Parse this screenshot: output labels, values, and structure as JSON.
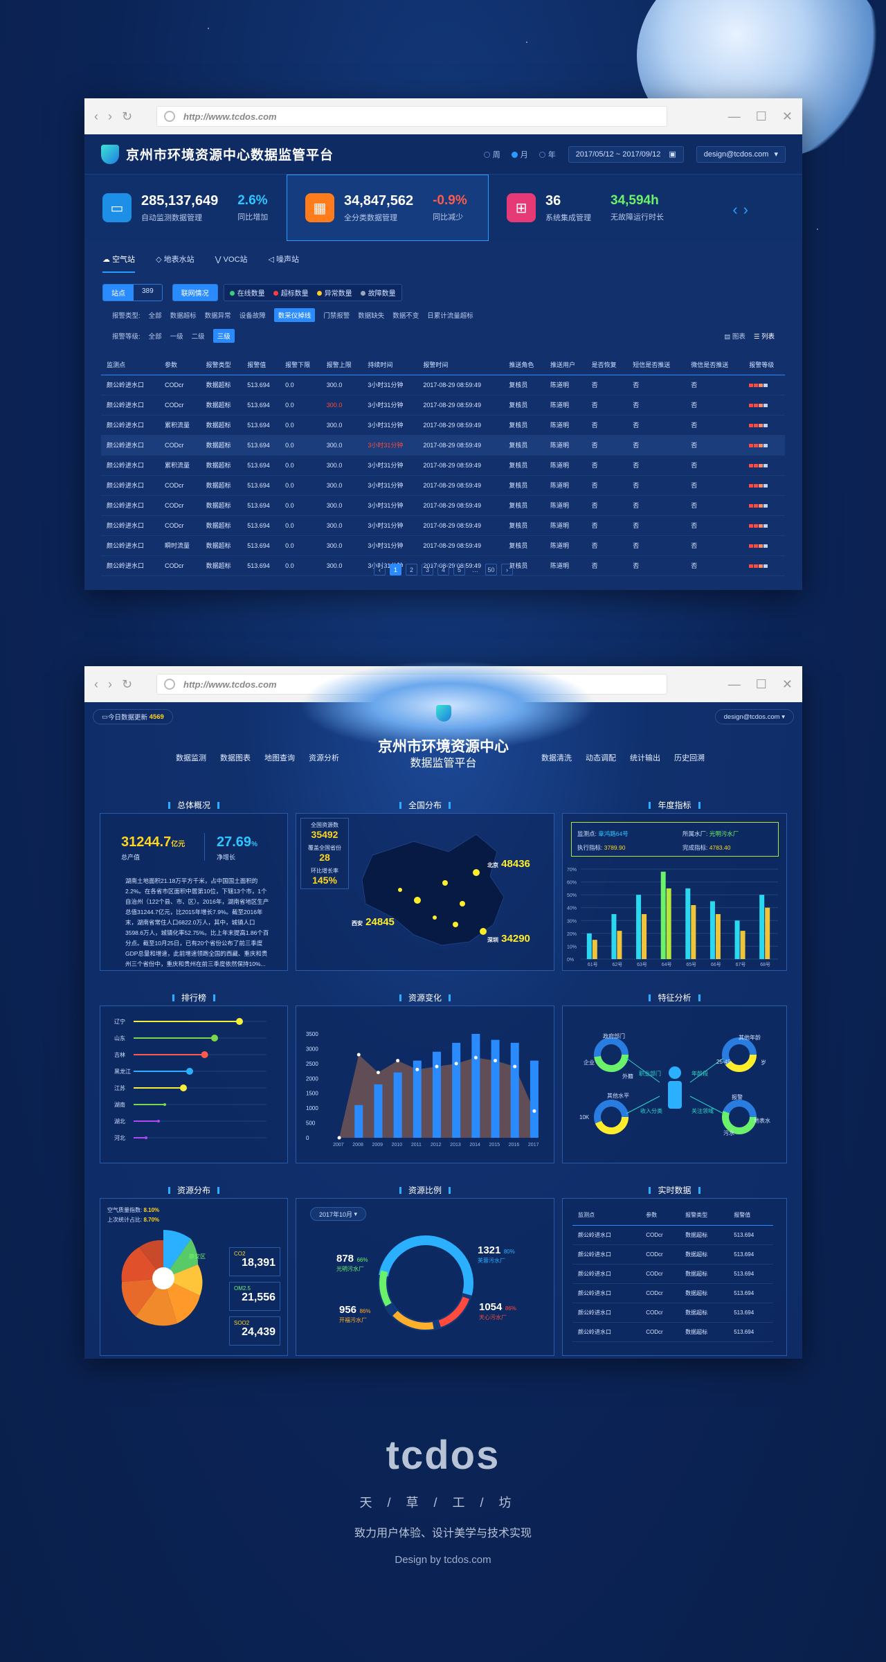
{
  "shared": {
    "url": "http://www.tcdos.com"
  },
  "screen1": {
    "title": "京州市环境资源中心数据监管平台",
    "periods": [
      "周",
      "月",
      "年"
    ],
    "date_range": "2017/05/12 ~ 2017/09/12",
    "user": "design@tcdos.com",
    "stats": [
      {
        "value": "285,137,649",
        "label": "自动监测数据管理",
        "pct": "2.6%",
        "pct_label": "同比增加",
        "pct_color": "#2ec6ff",
        "icon_color": "#1e8fe6",
        "icon": "laptop-icon"
      },
      {
        "value": "34,847,562",
        "label": "全分类数据管理",
        "pct": "-0.9%",
        "pct_label": "同比减少",
        "pct_color": "#ff5b4d",
        "icon_color": "#ff7c1d",
        "icon": "grid-icon"
      },
      {
        "value": "36",
        "label": "系统集成管理",
        "pct": "34,594h",
        "pct_label": "无故障运行时长",
        "pct_color": "#6cf26a",
        "icon_color": "#e53a76",
        "icon": "network-icon"
      }
    ],
    "tabs": [
      "空气站",
      "地表水站",
      "VOC站",
      "噪声站"
    ],
    "seg_left": {
      "label": "站点",
      "count": "389"
    },
    "seg_mid": "联网情况",
    "legend": [
      {
        "label": "在线数量",
        "color": "#33d17a"
      },
      {
        "label": "超标数量",
        "color": "#ff3d3d"
      },
      {
        "label": "异常数量",
        "color": "#ffc928"
      },
      {
        "label": "故障数量",
        "color": "#9aa6bd"
      }
    ],
    "filter_type_label": "报警类型:",
    "filter_types": [
      "全部",
      "数据超标",
      "数据异常",
      "设备故障",
      "数采仪掉线",
      "门禁报警",
      "数据缺失",
      "数据不变",
      "日累计流量超标"
    ],
    "filter_level_label": "报警等级:",
    "filter_levels": [
      "全部",
      "一级",
      "二级",
      "三级"
    ],
    "view_chart": "图表",
    "view_list": "列表",
    "columns": [
      "监测点",
      "参数",
      "报警类型",
      "报警值",
      "报警下限",
      "报警上限",
      "持续时间",
      "报警时间",
      "推送角色",
      "推送用户",
      "是否恢复",
      "短信是否推送",
      "微信是否推送",
      "报警等级"
    ],
    "rows": [
      [
        "颜公岭进水口",
        "CODcr",
        "数据超标",
        "513.694",
        "0.0",
        "300.0",
        "3小时31分钟",
        "2017-08-29 08:59:49",
        "复核员",
        "陈道明",
        "否",
        "否",
        "否"
      ],
      [
        "颜公岭进水口",
        "CODcr",
        "数据超标",
        "513.694",
        "0.0",
        "300.0",
        "3小时31分钟",
        "2017-08-29 08:59:49",
        "复核员",
        "陈道明",
        "否",
        "否",
        "否"
      ],
      [
        "颜公岭进水口",
        "累积流量",
        "数据超标",
        "513.694",
        "0.0",
        "300.0",
        "3小时31分钟",
        "2017-08-29 08:59:49",
        "复核员",
        "陈道明",
        "否",
        "否",
        "否"
      ],
      [
        "颜公岭进水口",
        "CODcr",
        "数据超标",
        "513.694",
        "0.0",
        "300.0",
        "3小时31分钟",
        "2017-08-29 08:59:49",
        "复核员",
        "陈道明",
        "否",
        "否",
        "否"
      ],
      [
        "颜公岭进水口",
        "累积流量",
        "数据超标",
        "513.694",
        "0.0",
        "300.0",
        "3小时31分钟",
        "2017-08-29 08:59:49",
        "复核员",
        "陈道明",
        "否",
        "否",
        "否"
      ],
      [
        "颜公岭进水口",
        "CODcr",
        "数据超标",
        "513.694",
        "0.0",
        "300.0",
        "3小时31分钟",
        "2017-08-29 08:59:49",
        "复核员",
        "陈道明",
        "否",
        "否",
        "否"
      ],
      [
        "颜公岭进水口",
        "CODcr",
        "数据超标",
        "513.694",
        "0.0",
        "300.0",
        "3小时31分钟",
        "2017-08-29 08:59:49",
        "复核员",
        "陈道明",
        "否",
        "否",
        "否"
      ],
      [
        "颜公岭进水口",
        "CODcr",
        "数据超标",
        "513.694",
        "0.0",
        "300.0",
        "3小时31分钟",
        "2017-08-29 08:59:49",
        "复核员",
        "陈道明",
        "否",
        "否",
        "否"
      ],
      [
        "颜公岭进水口",
        "瞬时流量",
        "数据超标",
        "513.694",
        "0.0",
        "300.0",
        "3小时31分钟",
        "2017-08-29 08:59:49",
        "复核员",
        "陈道明",
        "否",
        "否",
        "否"
      ],
      [
        "颜公岭进水口",
        "CODcr",
        "数据超标",
        "513.694",
        "0.0",
        "300.0",
        "3小时31分钟",
        "2017-08-29 08:59:49",
        "复核员",
        "陈道明",
        "否",
        "否",
        "否"
      ]
    ],
    "pages": [
      "1",
      "2",
      "3",
      "4",
      "5",
      "…",
      "50"
    ]
  },
  "screen2": {
    "badge_label": "今日数据更新",
    "badge_value": "4569",
    "title": "京州市环境资源中心",
    "subtitle": "数据监管平台",
    "user": "design@tcdos.com",
    "menu_left": [
      "数据监测",
      "数据图表",
      "地图查询",
      "资源分析"
    ],
    "menu_right": [
      "数据清洗",
      "动态调配",
      "统计输出",
      "历史回溯"
    ],
    "overview": {
      "title": "总体概况",
      "gdp": "31244.7",
      "gdp_unit": "亿元",
      "gdp_label": "总产值",
      "growth": "27.69",
      "growth_unit": "%",
      "growth_label": "净增长",
      "text": "湖南土地面积21.18万平方千米，占中国国土面积的2.2%。在各省市区面积中居第10位，下辖13个市，1个自治州（122个县、市、区）。2016年，湖南省地区生产总值31244.7亿元，比2015年增长7.9%。截至2016年末，湖南省常住人口6822.0万人，其中，城镇人口3598.6万人，城镇化率52.75%。比上年末提高1.86个百分点。截至10月25日，已有20个省份公布了前三季度GDP总量和增速，此前增速领跑全国的西藏、重庆和贵州三个省份中，重庆和贵州在前三季度依然保持10%..."
    },
    "map": {
      "title": "全国分布",
      "total_label": "全国资源数",
      "total": "35492",
      "cover_label": "覆盖全国省份",
      "cover": "28",
      "ratio_label": "环比增长率",
      "ratio": "145%",
      "cities": [
        {
          "name": "北京",
          "value": "48436"
        },
        {
          "name": "西安",
          "value": "24845"
        },
        {
          "name": "深圳",
          "value": "34290"
        }
      ]
    },
    "annual": {
      "title": "年度指标",
      "k1": "监测点:",
      "v1": "章鸿路64号",
      "k2": "所属水厂:",
      "v2": "光明污水厂",
      "k3": "执行指标:",
      "v3": "3789.90",
      "k4": "完成指标:",
      "v4": "4783.40"
    },
    "rank": {
      "title": "排行榜"
    },
    "resource_change": {
      "title": "资源变化"
    },
    "feature": {
      "title": "特征分析",
      "labels": [
        "政府部门",
        "其他年龄",
        "企业",
        "外籍",
        "25-45",
        "岁",
        "职业部门",
        "年龄段",
        "其他水平",
        "报警",
        "10K",
        "收入分类",
        "关注领域",
        "污水",
        "地表水"
      ]
    },
    "distribution": {
      "title": "资源分布",
      "aqi_label": "空气质量指数:",
      "aqi": "8.10%",
      "last_label": "上次统计占比:",
      "last": "8.70%",
      "area": "静安区",
      "items": [
        {
          "name": "CO2",
          "value": "18,391"
        },
        {
          "name": "OM2.5",
          "value": "21,556"
        },
        {
          "name": "SOO2",
          "value": "24,439"
        }
      ]
    },
    "ratio": {
      "title": "资源比例",
      "month": "2017年10月",
      "items": [
        {
          "value": "878",
          "pct": "66%",
          "name": "光明污水厂",
          "color": "#6cf26a"
        },
        {
          "value": "1321",
          "pct": "80%",
          "name": "芙蓉污水厂",
          "color": "#2ab0ff"
        },
        {
          "value": "956",
          "pct": "86%",
          "name": "开福污水厂",
          "color": "#ffb02a"
        },
        {
          "value": "1054",
          "pct": "86%",
          "name": "天心污水厂",
          "color": "#ff4a3d"
        }
      ]
    },
    "realtime": {
      "title": "实时数据",
      "columns": [
        "监测点",
        "参数",
        "报警类型",
        "报警值"
      ],
      "rows": [
        [
          "颜公岭进水口",
          "CODcr",
          "数据超标",
          "513.694"
        ],
        [
          "颜公岭进水口",
          "CODcr",
          "数据超标",
          "513.694"
        ],
        [
          "颜公岭进水口",
          "CODcr",
          "数据超标",
          "513.694"
        ],
        [
          "颜公岭进水口",
          "CODcr",
          "数据超标",
          "513.694"
        ],
        [
          "颜公岭进水口",
          "CODcr",
          "数据超标",
          "513.694"
        ],
        [
          "颜公岭进水口",
          "CODcr",
          "数据超标",
          "513.694"
        ]
      ]
    }
  },
  "chart_data": [
    {
      "type": "bar",
      "title": "年度指标",
      "categories": [
        "61号",
        "62号",
        "63号",
        "64号",
        "65号",
        "66号",
        "67号",
        "68号"
      ],
      "ylim": [
        0,
        70
      ],
      "yticks": [
        "0%",
        "10%",
        "20%",
        "30%",
        "40%",
        "50%",
        "60%",
        "70%"
      ],
      "series": [
        {
          "values": [
            20,
            35,
            50,
            68,
            55,
            45,
            30,
            50
          ]
        },
        {
          "values": [
            15,
            22,
            35,
            55,
            42,
            35,
            22,
            40
          ]
        }
      ]
    },
    {
      "type": "bar",
      "title": "排行榜",
      "categories": [
        "辽宁",
        "山东",
        "吉林",
        "黑龙江",
        "江苏",
        "湖南",
        "湖北",
        "河北"
      ],
      "values": [
        85,
        65,
        57,
        45,
        40,
        25,
        20,
        10
      ],
      "colors": [
        "#f6f03a",
        "#7ad84a",
        "#ff5a4a",
        "#2ab0ff",
        "#f6f03a",
        "#7ad84a",
        "#b04af0",
        "#b04af0"
      ]
    },
    {
      "type": "bar",
      "title": "资源变化",
      "categories": [
        "2007",
        "2008",
        "2009",
        "2010",
        "2011",
        "2012",
        "2013",
        "2014",
        "2015",
        "2016",
        "2017"
      ],
      "ylim": [
        0,
        3500
      ],
      "yticks": [
        "0",
        "500",
        "1000",
        "1500",
        "2000",
        "2500",
        "3000",
        "3500"
      ],
      "series": [
        {
          "values": [
            0,
            1100,
            1800,
            2200,
            2600,
            2900,
            3200,
            3500,
            3300,
            3200,
            2600
          ]
        },
        {
          "values": [
            0,
            2800,
            2200,
            2600,
            2300,
            2400,
            2500,
            2700,
            2600,
            2400,
            900
          ]
        }
      ]
    }
  ]
}
